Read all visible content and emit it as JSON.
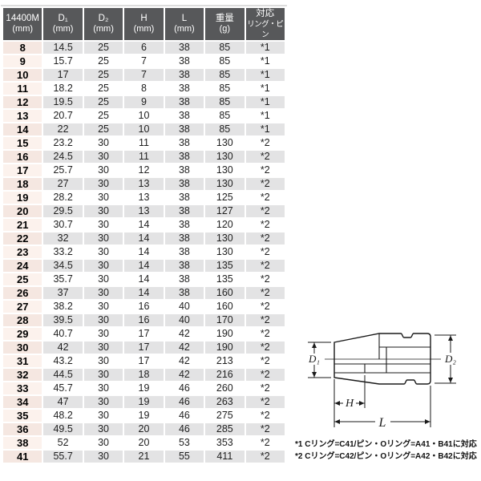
{
  "colors": {
    "header_bg": "#57585a",
    "header_text": "#ffffff",
    "stripe": "#e3e3e4",
    "col0_stripe": "#f5e7e1",
    "col0_plain": "#fcf2ed",
    "text": "#1f1f1f",
    "line": "#1a1a1a"
  },
  "table": {
    "columns": [
      {
        "label": "14400M",
        "unit": "(mm)"
      },
      {
        "label": "D₁",
        "unit": "(mm)"
      },
      {
        "label": "D₂",
        "unit": "(mm)"
      },
      {
        "label": "H",
        "unit": "(mm)"
      },
      {
        "label": "L",
        "unit": "(mm)"
      },
      {
        "label": "重量",
        "unit": "(g)"
      },
      {
        "label": "対応",
        "unit": "リング・ピン"
      }
    ],
    "rows": [
      [
        "8",
        "14.5",
        "25",
        "6",
        "38",
        "85",
        "*1"
      ],
      [
        "9",
        "15.7",
        "25",
        "7",
        "38",
        "85",
        "*1"
      ],
      [
        "10",
        "17",
        "25",
        "7",
        "38",
        "85",
        "*1"
      ],
      [
        "11",
        "18.2",
        "25",
        "8",
        "38",
        "85",
        "*1"
      ],
      [
        "12",
        "19.5",
        "25",
        "9",
        "38",
        "85",
        "*1"
      ],
      [
        "13",
        "20.7",
        "25",
        "10",
        "38",
        "85",
        "*1"
      ],
      [
        "14",
        "22",
        "25",
        "10",
        "38",
        "85",
        "*1"
      ],
      [
        "15",
        "23.2",
        "30",
        "11",
        "38",
        "130",
        "*2"
      ],
      [
        "16",
        "24.5",
        "30",
        "11",
        "38",
        "130",
        "*2"
      ],
      [
        "17",
        "25.7",
        "30",
        "12",
        "38",
        "130",
        "*2"
      ],
      [
        "18",
        "27",
        "30",
        "13",
        "38",
        "130",
        "*2"
      ],
      [
        "19",
        "28.2",
        "30",
        "13",
        "38",
        "125",
        "*2"
      ],
      [
        "20",
        "29.5",
        "30",
        "13",
        "38",
        "127",
        "*2"
      ],
      [
        "21",
        "30.7",
        "30",
        "14",
        "38",
        "120",
        "*2"
      ],
      [
        "22",
        "32",
        "30",
        "14",
        "38",
        "130",
        "*2"
      ],
      [
        "23",
        "33.2",
        "30",
        "14",
        "38",
        "130",
        "*2"
      ],
      [
        "24",
        "34.5",
        "30",
        "14",
        "38",
        "135",
        "*2"
      ],
      [
        "25",
        "35.7",
        "30",
        "14",
        "38",
        "135",
        "*2"
      ],
      [
        "26",
        "37",
        "30",
        "14",
        "38",
        "160",
        "*2"
      ],
      [
        "27",
        "38.2",
        "30",
        "16",
        "40",
        "160",
        "*2"
      ],
      [
        "28",
        "39.5",
        "30",
        "16",
        "40",
        "170",
        "*2"
      ],
      [
        "29",
        "40.7",
        "30",
        "17",
        "42",
        "190",
        "*2"
      ],
      [
        "30",
        "42",
        "30",
        "17",
        "42",
        "190",
        "*2"
      ],
      [
        "31",
        "43.2",
        "30",
        "17",
        "42",
        "213",
        "*2"
      ],
      [
        "32",
        "44.5",
        "30",
        "18",
        "42",
        "216",
        "*2"
      ],
      [
        "33",
        "45.7",
        "30",
        "19",
        "46",
        "260",
        "*2"
      ],
      [
        "34",
        "47",
        "30",
        "19",
        "46",
        "263",
        "*2"
      ],
      [
        "35",
        "48.2",
        "30",
        "19",
        "46",
        "275",
        "*2"
      ],
      [
        "36",
        "49.5",
        "30",
        "20",
        "46",
        "285",
        "*2"
      ],
      [
        "38",
        "52",
        "30",
        "20",
        "53",
        "353",
        "*2"
      ],
      [
        "41",
        "55.7",
        "30",
        "21",
        "55",
        "411",
        "*2"
      ]
    ]
  },
  "diagram": {
    "labels": {
      "d1": "D₁",
      "d2": "D₂",
      "h": "H",
      "l": "L"
    }
  },
  "footnotes": [
    "*1 Cリング=C41/ピン・Oリング=A41・B41に対応",
    "*2 Cリング=C42/ピン・Oリング=A42・B42に対応"
  ]
}
